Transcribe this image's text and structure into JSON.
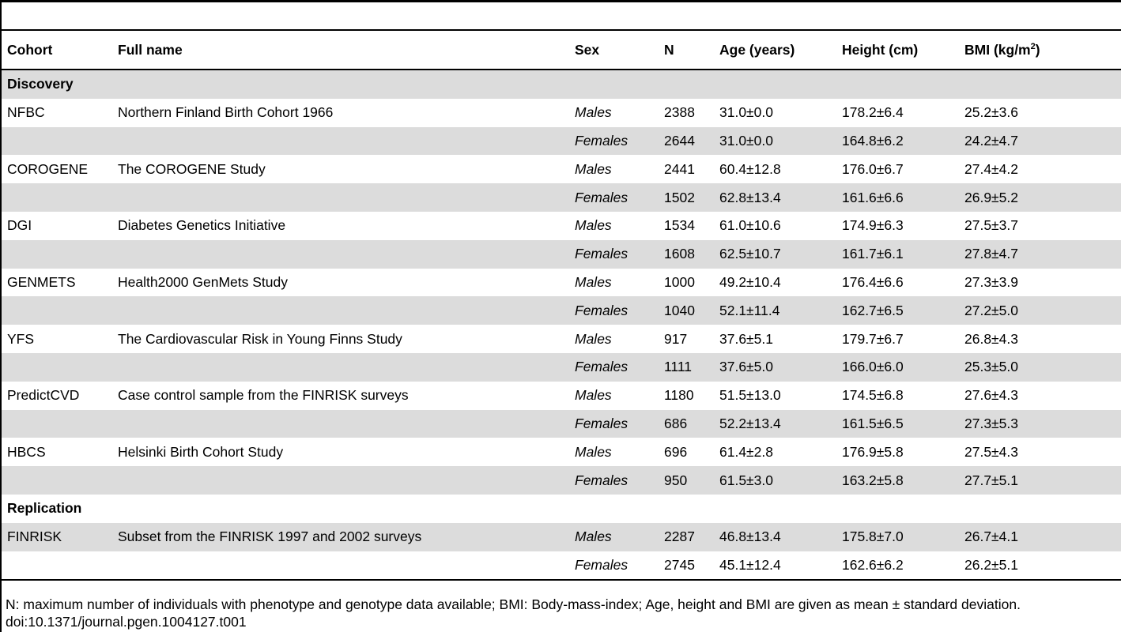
{
  "header": {
    "cohort": "Cohort",
    "full_name": "Full name",
    "sex": "Sex",
    "n": "N",
    "age": "Age (years)",
    "height": "Height (cm)",
    "bmi_prefix": "BMI (kg/m",
    "bmi_sup": "2",
    "bmi_suffix": ")"
  },
  "sections": {
    "discovery": "Discovery",
    "replication": "Replication"
  },
  "rows": [
    {
      "cohort": "NFBC",
      "full_name": "Northern Finland Birth Cohort 1966",
      "sex": "Males",
      "n": "2388",
      "age": "31.0±0.0",
      "height": "178.2±6.4",
      "bmi": "25.2±3.6"
    },
    {
      "cohort": "",
      "full_name": "",
      "sex": "Females",
      "n": "2644",
      "age": "31.0±0.0",
      "height": "164.8±6.2",
      "bmi": "24.2±4.7"
    },
    {
      "cohort": "COROGENE",
      "full_name": "The COROGENE Study",
      "sex": "Males",
      "n": "2441",
      "age": "60.4±12.8",
      "height": "176.0±6.7",
      "bmi": "27.4±4.2"
    },
    {
      "cohort": "",
      "full_name": "",
      "sex": "Females",
      "n": "1502",
      "age": "62.8±13.4",
      "height": "161.6±6.6",
      "bmi": "26.9±5.2"
    },
    {
      "cohort": "DGI",
      "full_name": "Diabetes Genetics Initiative",
      "sex": "Males",
      "n": "1534",
      "age": "61.0±10.6",
      "height": "174.9±6.3",
      "bmi": "27.5±3.7"
    },
    {
      "cohort": "",
      "full_name": "",
      "sex": "Females",
      "n": "1608",
      "age": "62.5±10.7",
      "height": "161.7±6.1",
      "bmi": "27.8±4.7"
    },
    {
      "cohort": "GENMETS",
      "full_name": "Health2000 GenMets Study",
      "sex": "Males",
      "n": "1000",
      "age": "49.2±10.4",
      "height": "176.4±6.6",
      "bmi": "27.3±3.9"
    },
    {
      "cohort": "",
      "full_name": "",
      "sex": "Females",
      "n": "1040",
      "age": "52.1±11.4",
      "height": "162.7±6.5",
      "bmi": "27.2±5.0"
    },
    {
      "cohort": "YFS",
      "full_name": "The Cardiovascular Risk in Young Finns Study",
      "sex": "Males",
      "n": "917",
      "age": "37.6±5.1",
      "height": "179.7±6.7",
      "bmi": "26.8±4.3"
    },
    {
      "cohort": "",
      "full_name": "",
      "sex": "Females",
      "n": "1111",
      "age": "37.6±5.0",
      "height": "166.0±6.0",
      "bmi": "25.3±5.0"
    },
    {
      "cohort": "PredictCVD",
      "full_name": "Case control sample from the FINRISK surveys",
      "sex": "Males",
      "n": "1180",
      "age": "51.5±13.0",
      "height": "174.5±6.8",
      "bmi": "27.6±4.3"
    },
    {
      "cohort": "",
      "full_name": "",
      "sex": "Females",
      "n": "686",
      "age": "52.2±13.4",
      "height": "161.5±6.5",
      "bmi": "27.3±5.3"
    },
    {
      "cohort": "HBCS",
      "full_name": "Helsinki Birth Cohort Study",
      "sex": "Males",
      "n": "696",
      "age": "61.4±2.8",
      "height": "176.9±5.8",
      "bmi": "27.5±4.3"
    },
    {
      "cohort": "",
      "full_name": "",
      "sex": "Females",
      "n": "950",
      "age": "61.5±3.0",
      "height": "163.2±5.8",
      "bmi": "27.7±5.1"
    },
    {
      "cohort": "FINRISK",
      "full_name": "Subset from the FINRISK 1997 and 2002 surveys",
      "sex": "Males",
      "n": "2287",
      "age": "46.8±13.4",
      "height": "175.8±7.0",
      "bmi": "26.7±4.1"
    },
    {
      "cohort": "",
      "full_name": "",
      "sex": "Females",
      "n": "2745",
      "age": "45.1±12.4",
      "height": "162.6±6.2",
      "bmi": "26.2±5.1"
    }
  ],
  "footnote": "N: maximum number of individuals with phenotype and genotype data available; BMI: Body-mass-index; Age, height and BMI are given as mean ± standard deviation.",
  "doi": "doi:10.1371/journal.pgen.1004127.t001"
}
